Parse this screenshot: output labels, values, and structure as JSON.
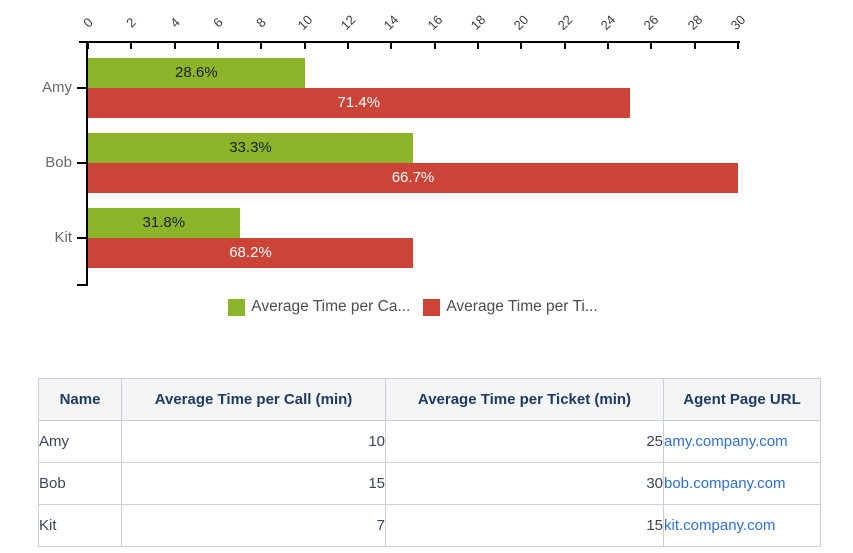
{
  "chart_data": {
    "type": "bar",
    "orientation": "horizontal",
    "categories": [
      "Amy",
      "Bob",
      "Kit"
    ],
    "series": [
      {
        "name": "Average Time per Call (min)",
        "legend_label": "Average Time per Ca...",
        "color": "#8cb42b",
        "values": [
          10,
          15,
          7
        ],
        "bar_labels": [
          "28.6%",
          "33.3%",
          "31.8%"
        ],
        "bar_label_color": "#1f1f1f"
      },
      {
        "name": "Average Time per Ticket (min)",
        "legend_label": "Average Time per Ti...",
        "color": "#cb4437",
        "values": [
          25,
          30,
          15
        ],
        "bar_labels": [
          "71.4%",
          "66.7%",
          "68.2%"
        ],
        "bar_label_color": "#ffffff"
      }
    ],
    "axis": {
      "position": "top",
      "min": 0,
      "max": 30,
      "tick_step": 2,
      "tick_labels": [
        "0",
        "2",
        "4",
        "6",
        "8",
        "10",
        "12",
        "14",
        "16",
        "18",
        "20",
        "22",
        "24",
        "26",
        "28",
        "30"
      ]
    },
    "legend_position": "bottom",
    "grid": false
  },
  "table": {
    "headers": [
      "Name",
      "Average Time per Call (min)",
      "Average Time per Ticket (min)",
      "Agent Page URL"
    ],
    "rows": [
      [
        "Amy",
        "10",
        "25",
        "amy.company.com"
      ],
      [
        "Bob",
        "15",
        "30",
        "bob.company.com"
      ],
      [
        "Kit",
        "7",
        "15",
        "kit.company.com"
      ]
    ],
    "link_column": 3
  },
  "colors": {
    "axis": "#000000",
    "tick_label": "#3c3c3c",
    "category_label": "#6a6a6a",
    "legend_text": "#4d4d4d",
    "table_header_text": "#1f3a63",
    "table_body_text": "#3d4453",
    "table_border": "#cbd0d8",
    "table_header_bg": "#f4f5f7",
    "link": "#2e6fd9"
  }
}
